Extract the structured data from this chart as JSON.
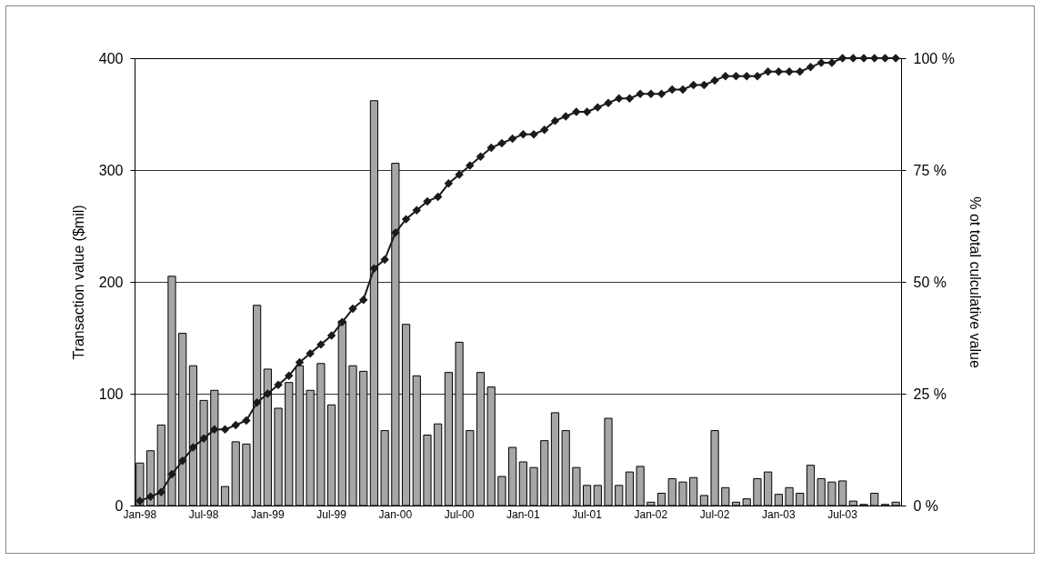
{
  "chart_data": {
    "type": "bar",
    "ylabel": "Transaction value ($mil)",
    "y2label": "% ot total culculative value",
    "categories": [
      "Jan-98",
      null,
      null,
      null,
      null,
      null,
      "Jul-98",
      null,
      null,
      null,
      null,
      null,
      "Jan-99",
      null,
      null,
      null,
      null,
      null,
      "Jul-99",
      null,
      null,
      null,
      null,
      null,
      "Jan-00",
      null,
      null,
      null,
      null,
      null,
      "Jul-00",
      null,
      null,
      null,
      null,
      null,
      "Jan-01",
      null,
      null,
      null,
      null,
      null,
      "Jul-01",
      null,
      null,
      null,
      null,
      null,
      "Jan-02",
      null,
      null,
      null,
      null,
      null,
      "Jul-02",
      null,
      null,
      null,
      null,
      null,
      "Jan-03",
      null,
      null,
      null,
      null,
      null,
      "Jul-03",
      null,
      null,
      null,
      null,
      null
    ],
    "series": [
      {
        "color": "#a6a6a6",
        "values": [
          38,
          49,
          72,
          205,
          154,
          125,
          94,
          103,
          17,
          57,
          55,
          179,
          122,
          87,
          110,
          125,
          103,
          127,
          90,
          165,
          125,
          120,
          362,
          67,
          306,
          162,
          116,
          63,
          73,
          119,
          146,
          67,
          119,
          106,
          26,
          52,
          39,
          34,
          58,
          83,
          67,
          34,
          18,
          18,
          78,
          18,
          30,
          35,
          3,
          11,
          24,
          21,
          25,
          9,
          67,
          16,
          3,
          6,
          24,
          30,
          10,
          16,
          11,
          36,
          24,
          21,
          22,
          4,
          1,
          11,
          1,
          3
        ]
      },
      {
        "type": "line",
        "axis": "y2",
        "color": "#1a1a1a",
        "values": [
          1,
          2,
          3,
          7,
          10,
          13,
          15,
          17,
          17,
          18,
          19,
          23,
          25,
          27,
          29,
          32,
          34,
          36,
          38,
          41,
          44,
          46,
          53,
          55,
          61,
          64,
          66,
          68,
          69,
          72,
          74,
          76,
          78,
          80,
          81,
          82,
          83,
          83,
          84,
          86,
          87,
          88,
          88,
          89,
          90,
          91,
          91,
          92,
          92,
          92,
          93,
          93,
          94,
          94,
          95,
          96,
          96,
          96,
          96,
          97,
          97,
          97,
          97,
          98,
          99,
          99,
          100,
          100,
          100,
          100,
          100,
          100
        ]
      }
    ],
    "ylim": [
      0,
      400
    ],
    "yticks": [
      0,
      100,
      200,
      300,
      400
    ],
    "y2lim": [
      0,
      100
    ],
    "y2ticks": [
      {
        "value": 0,
        "label": "0 %"
      },
      {
        "value": 25,
        "label": "25 %"
      },
      {
        "value": 50,
        "label": "50 %"
      },
      {
        "value": 75,
        "label": "75 %"
      },
      {
        "value": 100,
        "label": "100 %"
      }
    ],
    "grid": "y",
    "marker": "diamond",
    "line_style": "solid"
  }
}
